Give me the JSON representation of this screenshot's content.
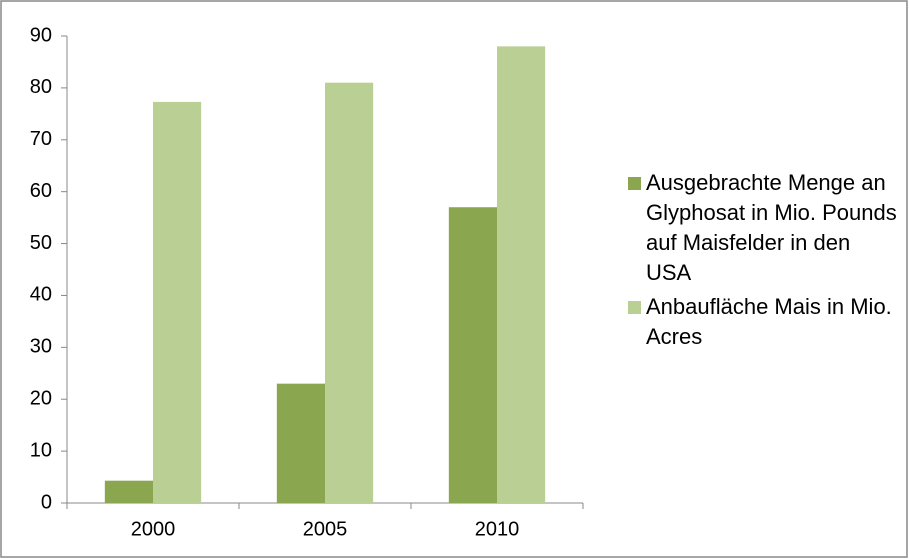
{
  "chart_data": {
    "type": "bar",
    "categories": [
      "2000",
      "2005",
      "2010"
    ],
    "series": [
      {
        "name": "Ausgebrachte Menge an Glyphosat in Mio. Pounds auf Maisfelder in den USA",
        "color": "#8aa64e",
        "values": [
          4.3,
          23,
          57
        ]
      },
      {
        "name": "Anbaufläche Mais in Mio. Acres",
        "color": "#b9cf94",
        "values": [
          77.3,
          81,
          88
        ]
      }
    ],
    "ylim": [
      0,
      90
    ],
    "yticks": [
      0,
      10,
      20,
      30,
      40,
      50,
      60,
      70,
      80,
      90
    ],
    "grid": false,
    "legend": "right"
  }
}
